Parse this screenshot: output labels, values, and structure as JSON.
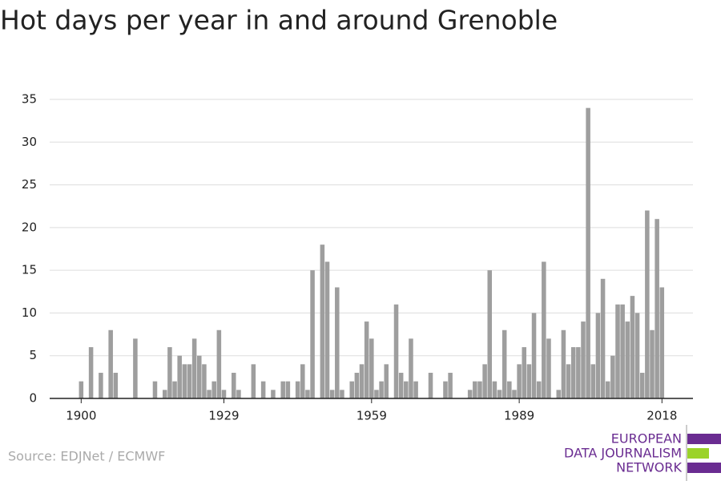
{
  "chart_data": {
    "type": "bar",
    "title": "Hot days per year in and around Grenoble",
    "x": [
      1900,
      1901,
      1902,
      1903,
      1904,
      1905,
      1906,
      1907,
      1908,
      1909,
      1910,
      1911,
      1912,
      1913,
      1914,
      1915,
      1916,
      1917,
      1918,
      1919,
      1920,
      1921,
      1922,
      1923,
      1924,
      1925,
      1926,
      1927,
      1928,
      1929,
      1930,
      1931,
      1932,
      1933,
      1934,
      1935,
      1936,
      1937,
      1938,
      1939,
      1940,
      1941,
      1942,
      1943,
      1944,
      1945,
      1946,
      1947,
      1948,
      1949,
      1950,
      1951,
      1952,
      1953,
      1954,
      1955,
      1956,
      1957,
      1958,
      1959,
      1960,
      1961,
      1962,
      1963,
      1964,
      1965,
      1966,
      1967,
      1968,
      1969,
      1970,
      1971,
      1972,
      1973,
      1974,
      1975,
      1976,
      1977,
      1978,
      1979,
      1980,
      1981,
      1982,
      1983,
      1984,
      1985,
      1986,
      1987,
      1988,
      1989,
      1990,
      1991,
      1992,
      1993,
      1994,
      1995,
      1996,
      1997,
      1998,
      1999,
      2000,
      2001,
      2002,
      2003,
      2004,
      2005,
      2006,
      2007,
      2008,
      2009,
      2010,
      2011,
      2012,
      2013,
      2014,
      2015,
      2016,
      2017,
      2018
    ],
    "values": [
      2,
      0,
      6,
      0,
      3,
      0,
      8,
      3,
      0,
      0,
      0,
      7,
      0,
      0,
      0,
      2,
      0,
      1,
      6,
      2,
      5,
      4,
      4,
      7,
      5,
      4,
      1,
      2,
      8,
      1,
      0,
      3,
      1,
      0,
      0,
      4,
      0,
      2,
      0,
      1,
      0,
      2,
      2,
      0,
      2,
      4,
      1,
      15,
      0,
      18,
      16,
      1,
      13,
      1,
      0,
      2,
      3,
      4,
      9,
      7,
      1,
      2,
      4,
      0,
      11,
      3,
      2,
      7,
      2,
      0,
      0,
      3,
      0,
      0,
      2,
      3,
      0,
      0,
      0,
      1,
      2,
      2,
      4,
      15,
      2,
      1,
      8,
      2,
      1,
      4,
      6,
      4,
      10,
      2,
      16,
      7,
      0,
      1,
      8,
      4,
      6,
      6,
      9,
      34,
      4,
      10,
      14,
      2,
      5,
      11,
      11,
      9,
      12,
      10,
      3,
      22,
      8,
      21,
      13
    ],
    "color": "#9e9e9e",
    "xlim": [
      1893.6,
      2024.3
    ],
    "xticks": [
      1900,
      1929,
      1959,
      1989,
      2018
    ],
    "ylim": [
      0,
      35
    ],
    "yticks": [
      0,
      5,
      10,
      15,
      20,
      25,
      30,
      35
    ],
    "grid": true,
    "source": "Source: EDJNet / ECMWF"
  },
  "logo": {
    "lines": [
      "EUROPEAN",
      "DATA JOURNALISM",
      "NETWORK"
    ]
  }
}
